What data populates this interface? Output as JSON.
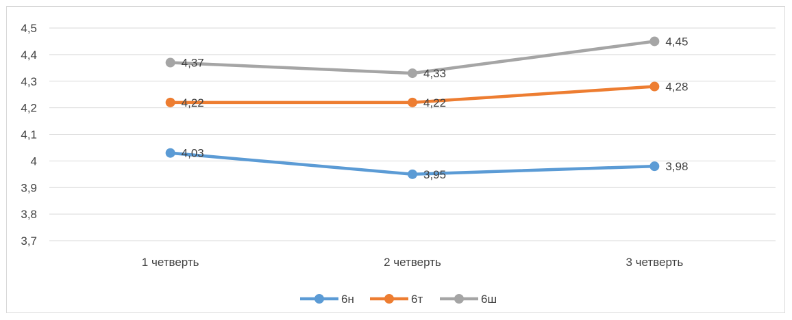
{
  "chart_data": {
    "type": "line",
    "title": "",
    "xlabel": "",
    "ylabel": "",
    "categories": [
      "1 четверть",
      "2 четверть",
      "3 четверть"
    ],
    "ylim": [
      3.7,
      4.5
    ],
    "yticks": [
      3.7,
      3.8,
      3.9,
      4,
      4.1,
      4.2,
      4.3,
      4.4,
      4.5
    ],
    "ytick_labels": [
      "3,7",
      "3,8",
      "3,9",
      "4",
      "4,1",
      "4,2",
      "4,3",
      "4,4",
      "4,5"
    ],
    "grid": true,
    "legend_position": "bottom",
    "series": [
      {
        "name": "6н",
        "color": "#5b9bd5",
        "values": [
          4.03,
          3.95,
          3.98
        ],
        "labels": [
          "4,03",
          "3,95",
          "3,98"
        ]
      },
      {
        "name": "6т",
        "color": "#ed7d31",
        "values": [
          4.22,
          4.22,
          4.28
        ],
        "labels": [
          "4,22",
          "4,22",
          "4,28"
        ]
      },
      {
        "name": "6ш",
        "color": "#a5a5a5",
        "values": [
          4.37,
          4.33,
          4.45
        ],
        "labels": [
          "4,37",
          "4,33",
          "4,45"
        ]
      }
    ]
  }
}
